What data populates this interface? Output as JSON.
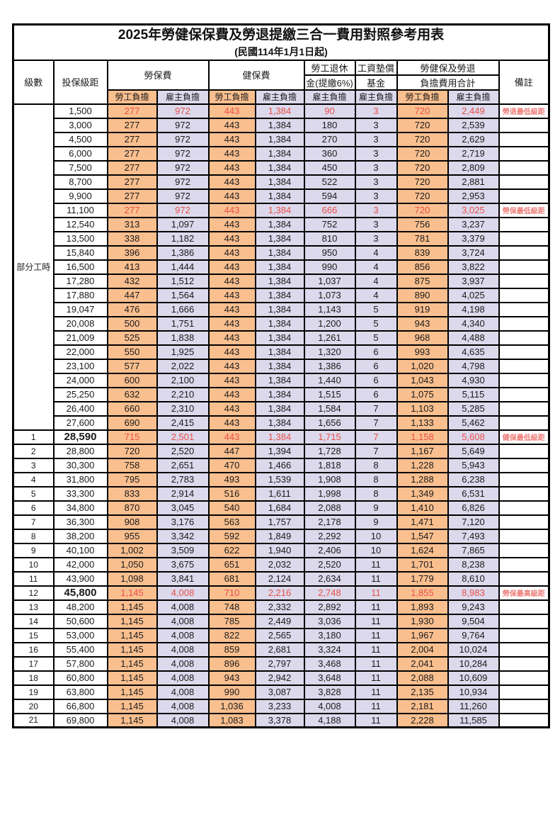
{
  "title": "2025年勞健保保費及勞退提繳三合一費用對照參考用表",
  "subtitle": "(民國114年1月1日起)",
  "colors": {
    "employee_bg": "#FABF8F",
    "employer_bg": "#DCD9EC",
    "highlight_value_red": "#e85048",
    "note_red": "#ee7b76",
    "border": "#000000"
  },
  "header": {
    "level": "級數",
    "grade": "投保級距",
    "labor_insurance": "勞保費",
    "health_insurance": "健保費",
    "pension_line1": "勞工退休",
    "pension_line2": "金(提繳6%)",
    "wage_fund_line1": "工資墊償",
    "wage_fund_line2": "基金",
    "total_line1": "勞健保及勞退",
    "total_line2": "負擔費用合計",
    "remark": "備註",
    "employee_label": "勞工負擔",
    "employer_label": "雇主負擔"
  },
  "table": {
    "part_time_label": "部分工時",
    "part_time_span": 23,
    "rows": [
      {
        "grade": "1,500",
        "values": [
          "277",
          "972",
          "443",
          "1,384",
          "90",
          "3",
          "720",
          "2,449"
        ],
        "note": "勞退最低級距",
        "red": true
      },
      {
        "grade": "3,000",
        "values": [
          "277",
          "972",
          "443",
          "1,384",
          "180",
          "3",
          "720",
          "2,539"
        ],
        "note": "",
        "red": false
      },
      {
        "grade": "4,500",
        "values": [
          "277",
          "972",
          "443",
          "1,384",
          "270",
          "3",
          "720",
          "2,629"
        ],
        "note": "",
        "red": false
      },
      {
        "grade": "6,000",
        "values": [
          "277",
          "972",
          "443",
          "1,384",
          "360",
          "3",
          "720",
          "2,719"
        ],
        "note": "",
        "red": false
      },
      {
        "grade": "7,500",
        "values": [
          "277",
          "972",
          "443",
          "1,384",
          "450",
          "3",
          "720",
          "2,809"
        ],
        "note": "",
        "red": false
      },
      {
        "grade": "8,700",
        "values": [
          "277",
          "972",
          "443",
          "1,384",
          "522",
          "3",
          "720",
          "2,881"
        ],
        "note": "",
        "red": false
      },
      {
        "grade": "9,900",
        "values": [
          "277",
          "972",
          "443",
          "1,384",
          "594",
          "3",
          "720",
          "2,953"
        ],
        "note": "",
        "red": false
      },
      {
        "grade": "11,100",
        "values": [
          "277",
          "972",
          "443",
          "1,384",
          "666",
          "3",
          "720",
          "3,025"
        ],
        "note": "勞保最低級距",
        "red": true
      },
      {
        "grade": "12,540",
        "values": [
          "313",
          "1,097",
          "443",
          "1,384",
          "752",
          "3",
          "756",
          "3,237"
        ],
        "note": "",
        "red": false
      },
      {
        "grade": "13,500",
        "values": [
          "338",
          "1,182",
          "443",
          "1,384",
          "810",
          "3",
          "781",
          "3,379"
        ],
        "note": "",
        "red": false
      },
      {
        "grade": "15,840",
        "values": [
          "396",
          "1,386",
          "443",
          "1,384",
          "950",
          "4",
          "839",
          "3,724"
        ],
        "note": "",
        "red": false
      },
      {
        "grade": "16,500",
        "values": [
          "413",
          "1,444",
          "443",
          "1,384",
          "990",
          "4",
          "856",
          "3,822"
        ],
        "note": "",
        "red": false
      },
      {
        "grade": "17,280",
        "values": [
          "432",
          "1,512",
          "443",
          "1,384",
          "1,037",
          "4",
          "875",
          "3,937"
        ],
        "note": "",
        "red": false
      },
      {
        "grade": "17,880",
        "values": [
          "447",
          "1,564",
          "443",
          "1,384",
          "1,073",
          "4",
          "890",
          "4,025"
        ],
        "note": "",
        "red": false
      },
      {
        "grade": "19,047",
        "values": [
          "476",
          "1,666",
          "443",
          "1,384",
          "1,143",
          "5",
          "919",
          "4,198"
        ],
        "note": "",
        "red": false
      },
      {
        "grade": "20,008",
        "values": [
          "500",
          "1,751",
          "443",
          "1,384",
          "1,200",
          "5",
          "943",
          "4,340"
        ],
        "note": "",
        "red": false
      },
      {
        "grade": "21,009",
        "values": [
          "525",
          "1,838",
          "443",
          "1,384",
          "1,261",
          "5",
          "968",
          "4,488"
        ],
        "note": "",
        "red": false
      },
      {
        "grade": "22,000",
        "values": [
          "550",
          "1,925",
          "443",
          "1,384",
          "1,320",
          "6",
          "993",
          "4,635"
        ],
        "note": "",
        "red": false
      },
      {
        "grade": "23,100",
        "values": [
          "577",
          "2,022",
          "443",
          "1,384",
          "1,386",
          "6",
          "1,020",
          "4,798"
        ],
        "note": "",
        "red": false
      },
      {
        "grade": "24,000",
        "values": [
          "600",
          "2,100",
          "443",
          "1,384",
          "1,440",
          "6",
          "1,043",
          "4,930"
        ],
        "note": "",
        "red": false
      },
      {
        "grade": "25,250",
        "values": [
          "632",
          "2,210",
          "443",
          "1,384",
          "1,515",
          "6",
          "1,075",
          "5,115"
        ],
        "note": "",
        "red": false
      },
      {
        "grade": "26,400",
        "values": [
          "660",
          "2,310",
          "443",
          "1,384",
          "1,584",
          "7",
          "1,103",
          "5,285"
        ],
        "note": "",
        "red": false
      },
      {
        "grade": "27,600",
        "values": [
          "690",
          "2,415",
          "443",
          "1,384",
          "1,656",
          "7",
          "1,133",
          "5,462"
        ],
        "note": "",
        "red": false
      },
      {
        "level": "1",
        "grade": "28,590",
        "values": [
          "715",
          "2,501",
          "443",
          "1,384",
          "1,715",
          "7",
          "1,158",
          "5,608"
        ],
        "note": "健保最低級距",
        "red": true,
        "emphasis": true
      },
      {
        "level": "2",
        "grade": "28,800",
        "values": [
          "720",
          "2,520",
          "447",
          "1,394",
          "1,728",
          "7",
          "1,167",
          "5,649"
        ],
        "note": "",
        "red": false
      },
      {
        "level": "3",
        "grade": "30,300",
        "values": [
          "758",
          "2,651",
          "470",
          "1,466",
          "1,818",
          "8",
          "1,228",
          "5,943"
        ],
        "note": "",
        "red": false
      },
      {
        "level": "4",
        "grade": "31,800",
        "values": [
          "795",
          "2,783",
          "493",
          "1,539",
          "1,908",
          "8",
          "1,288",
          "6,238"
        ],
        "note": "",
        "red": false
      },
      {
        "level": "5",
        "grade": "33,300",
        "values": [
          "833",
          "2,914",
          "516",
          "1,611",
          "1,998",
          "8",
          "1,349",
          "6,531"
        ],
        "note": "",
        "red": false
      },
      {
        "level": "6",
        "grade": "34,800",
        "values": [
          "870",
          "3,045",
          "540",
          "1,684",
          "2,088",
          "9",
          "1,410",
          "6,826"
        ],
        "note": "",
        "red": false
      },
      {
        "level": "7",
        "grade": "36,300",
        "values": [
          "908",
          "3,176",
          "563",
          "1,757",
          "2,178",
          "9",
          "1,471",
          "7,120"
        ],
        "note": "",
        "red": false
      },
      {
        "level": "8",
        "grade": "38,200",
        "values": [
          "955",
          "3,342",
          "592",
          "1,849",
          "2,292",
          "10",
          "1,547",
          "7,493"
        ],
        "note": "",
        "red": false
      },
      {
        "level": "9",
        "grade": "40,100",
        "values": [
          "1,002",
          "3,509",
          "622",
          "1,940",
          "2,406",
          "10",
          "1,624",
          "7,865"
        ],
        "note": "",
        "red": false
      },
      {
        "level": "10",
        "grade": "42,000",
        "values": [
          "1,050",
          "3,675",
          "651",
          "2,032",
          "2,520",
          "11",
          "1,701",
          "8,238"
        ],
        "note": "",
        "red": false
      },
      {
        "level": "11",
        "grade": "43,900",
        "values": [
          "1,098",
          "3,841",
          "681",
          "2,124",
          "2,634",
          "11",
          "1,779",
          "8,610"
        ],
        "note": "",
        "red": false
      },
      {
        "level": "12",
        "grade": "45,800",
        "values": [
          "1,145",
          "4,008",
          "710",
          "2,216",
          "2,748",
          "11",
          "1,855",
          "8,983"
        ],
        "note": "勞保最高級距",
        "red": true,
        "emphasis": true
      },
      {
        "level": "13",
        "grade": "48,200",
        "values": [
          "1,145",
          "4,008",
          "748",
          "2,332",
          "2,892",
          "11",
          "1,893",
          "9,243"
        ],
        "note": "",
        "red": false
      },
      {
        "level": "14",
        "grade": "50,600",
        "values": [
          "1,145",
          "4,008",
          "785",
          "2,449",
          "3,036",
          "11",
          "1,930",
          "9,504"
        ],
        "note": "",
        "red": false
      },
      {
        "level": "15",
        "grade": "53,000",
        "values": [
          "1,145",
          "4,008",
          "822",
          "2,565",
          "3,180",
          "11",
          "1,967",
          "9,764"
        ],
        "note": "",
        "red": false
      },
      {
        "level": "16",
        "grade": "55,400",
        "values": [
          "1,145",
          "4,008",
          "859",
          "2,681",
          "3,324",
          "11",
          "2,004",
          "10,024"
        ],
        "note": "",
        "red": false
      },
      {
        "level": "17",
        "grade": "57,800",
        "values": [
          "1,145",
          "4,008",
          "896",
          "2,797",
          "3,468",
          "11",
          "2,041",
          "10,284"
        ],
        "note": "",
        "red": false
      },
      {
        "level": "18",
        "grade": "60,800",
        "values": [
          "1,145",
          "4,008",
          "943",
          "2,942",
          "3,648",
          "11",
          "2,088",
          "10,609"
        ],
        "note": "",
        "red": false
      },
      {
        "level": "19",
        "grade": "63,800",
        "values": [
          "1,145",
          "4,008",
          "990",
          "3,087",
          "3,828",
          "11",
          "2,135",
          "10,934"
        ],
        "note": "",
        "red": false
      },
      {
        "level": "20",
        "grade": "66,800",
        "values": [
          "1,145",
          "4,008",
          "1,036",
          "3,233",
          "4,008",
          "11",
          "2,181",
          "11,260"
        ],
        "note": "",
        "red": false
      },
      {
        "level": "21",
        "grade": "69,800",
        "values": [
          "1,145",
          "4,008",
          "1,083",
          "3,378",
          "4,188",
          "11",
          "2,228",
          "11,585"
        ],
        "note": "",
        "red": false
      }
    ]
  }
}
